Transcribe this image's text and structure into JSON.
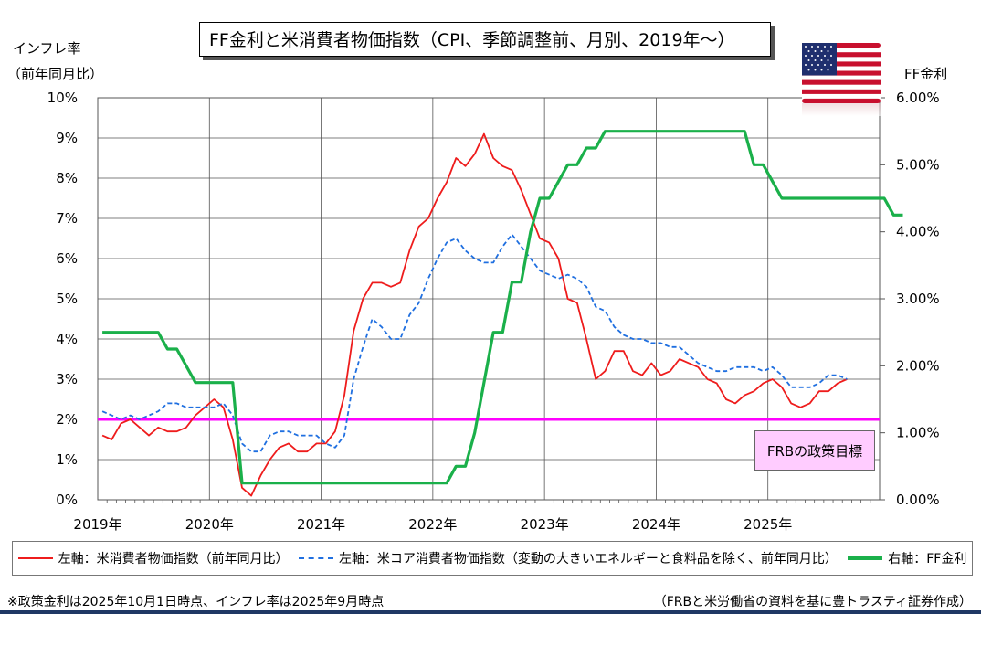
{
  "title": "FF金利と米消費者物価指数（CPI、季節調整前、月別、2019年～）",
  "left_axis_title": [
    "インフレ率",
    "（前年同月比）"
  ],
  "right_axis_title": "FF金利",
  "target_label": "FRBの政策目標",
  "footnote_left": "※政策金利は2025年10月1日時点、インフレ率は2025年9月時点",
  "footnote_right": "（FRBと米労働省の資料を基に豊トラスティ証券作成）",
  "legend": [
    {
      "label": "左軸：米消費者物価指数（前年同月比）",
      "color": "#ee1c1c",
      "style": "solid"
    },
    {
      "label": "左軸：米コア消費者物価指数（変動の大きいエネルギーと食料品を除く、前年同月比）",
      "color": "#1f6fe0",
      "style": "dashed"
    },
    {
      "label": "右軸：FF金利",
      "color": "#1ab04a",
      "style": "solid"
    }
  ],
  "colors": {
    "target_line": "#ff00ff",
    "grid": "#555555"
  },
  "chart_data": {
    "type": "line",
    "x_start": "2019-01",
    "x_ticks": [
      "2019年",
      "2020年",
      "2021年",
      "2022年",
      "2023年",
      "2024年",
      "2025年"
    ],
    "y_left_ticks": [
      "0%",
      "1%",
      "2%",
      "3%",
      "4%",
      "5%",
      "6%",
      "7%",
      "8%",
      "9%",
      "10%"
    ],
    "y_right_ticks": [
      "0.00%",
      "1.00%",
      "2.00%",
      "3.00%",
      "4.00%",
      "5.00%",
      "6.00%"
    ],
    "y_left_range": [
      0,
      10
    ],
    "y_right_range": [
      0,
      6
    ],
    "target": 2.0,
    "series": [
      {
        "name": "米消費者物価指数",
        "axis": "left",
        "values": [
          1.6,
          1.5,
          1.9,
          2.0,
          1.8,
          1.6,
          1.8,
          1.7,
          1.7,
          1.8,
          2.1,
          2.3,
          2.5,
          2.3,
          1.5,
          0.3,
          0.1,
          0.6,
          1.0,
          1.3,
          1.4,
          1.2,
          1.2,
          1.4,
          1.4,
          1.7,
          2.6,
          4.2,
          5.0,
          5.4,
          5.4,
          5.3,
          5.4,
          6.2,
          6.8,
          7.0,
          7.5,
          7.9,
          8.5,
          8.3,
          8.6,
          9.1,
          8.5,
          8.3,
          8.2,
          7.7,
          7.1,
          6.5,
          6.4,
          6.0,
          5.0,
          4.9,
          4.0,
          3.0,
          3.2,
          3.7,
          3.7,
          3.2,
          3.1,
          3.4,
          3.1,
          3.2,
          3.5,
          3.4,
          3.3,
          3.0,
          2.9,
          2.5,
          2.4,
          2.6,
          2.7,
          2.9,
          3.0,
          2.8,
          2.4,
          2.3,
          2.4,
          2.7,
          2.7,
          2.9,
          3.0
        ]
      },
      {
        "name": "米コア消費者物価指数",
        "axis": "left",
        "values": [
          2.2,
          2.1,
          2.0,
          2.1,
          2.0,
          2.1,
          2.2,
          2.4,
          2.4,
          2.3,
          2.3,
          2.3,
          2.3,
          2.4,
          2.1,
          1.4,
          1.2,
          1.2,
          1.6,
          1.7,
          1.7,
          1.6,
          1.6,
          1.6,
          1.4,
          1.3,
          1.6,
          3.0,
          3.8,
          4.5,
          4.3,
          4.0,
          4.0,
          4.6,
          4.9,
          5.5,
          6.0,
          6.4,
          6.5,
          6.2,
          6.0,
          5.9,
          5.9,
          6.3,
          6.6,
          6.3,
          6.0,
          5.7,
          5.6,
          5.5,
          5.6,
          5.5,
          5.3,
          4.8,
          4.7,
          4.3,
          4.1,
          4.0,
          4.0,
          3.9,
          3.9,
          3.8,
          3.8,
          3.6,
          3.4,
          3.3,
          3.2,
          3.2,
          3.3,
          3.3,
          3.3,
          3.2,
          3.3,
          3.1,
          2.8,
          2.8,
          2.8,
          2.9,
          3.1,
          3.1,
          3.0
        ]
      },
      {
        "name": "FF金利",
        "axis": "right",
        "values": [
          2.5,
          2.5,
          2.5,
          2.5,
          2.5,
          2.5,
          2.5,
          2.25,
          2.25,
          2.0,
          1.75,
          1.75,
          1.75,
          1.75,
          1.75,
          0.25,
          0.25,
          0.25,
          0.25,
          0.25,
          0.25,
          0.25,
          0.25,
          0.25,
          0.25,
          0.25,
          0.25,
          0.25,
          0.25,
          0.25,
          0.25,
          0.25,
          0.25,
          0.25,
          0.25,
          0.25,
          0.25,
          0.25,
          0.5,
          0.5,
          1.0,
          1.75,
          2.5,
          2.5,
          3.25,
          3.25,
          4.0,
          4.5,
          4.5,
          4.75,
          5.0,
          5.0,
          5.25,
          5.25,
          5.5,
          5.5,
          5.5,
          5.5,
          5.5,
          5.5,
          5.5,
          5.5,
          5.5,
          5.5,
          5.5,
          5.5,
          5.5,
          5.5,
          5.5,
          5.5,
          5.0,
          5.0,
          4.75,
          4.5,
          4.5,
          4.5,
          4.5,
          4.5,
          4.5,
          4.5,
          4.5,
          4.5,
          4.5,
          4.5,
          4.5,
          4.25,
          4.25
        ]
      }
    ]
  }
}
